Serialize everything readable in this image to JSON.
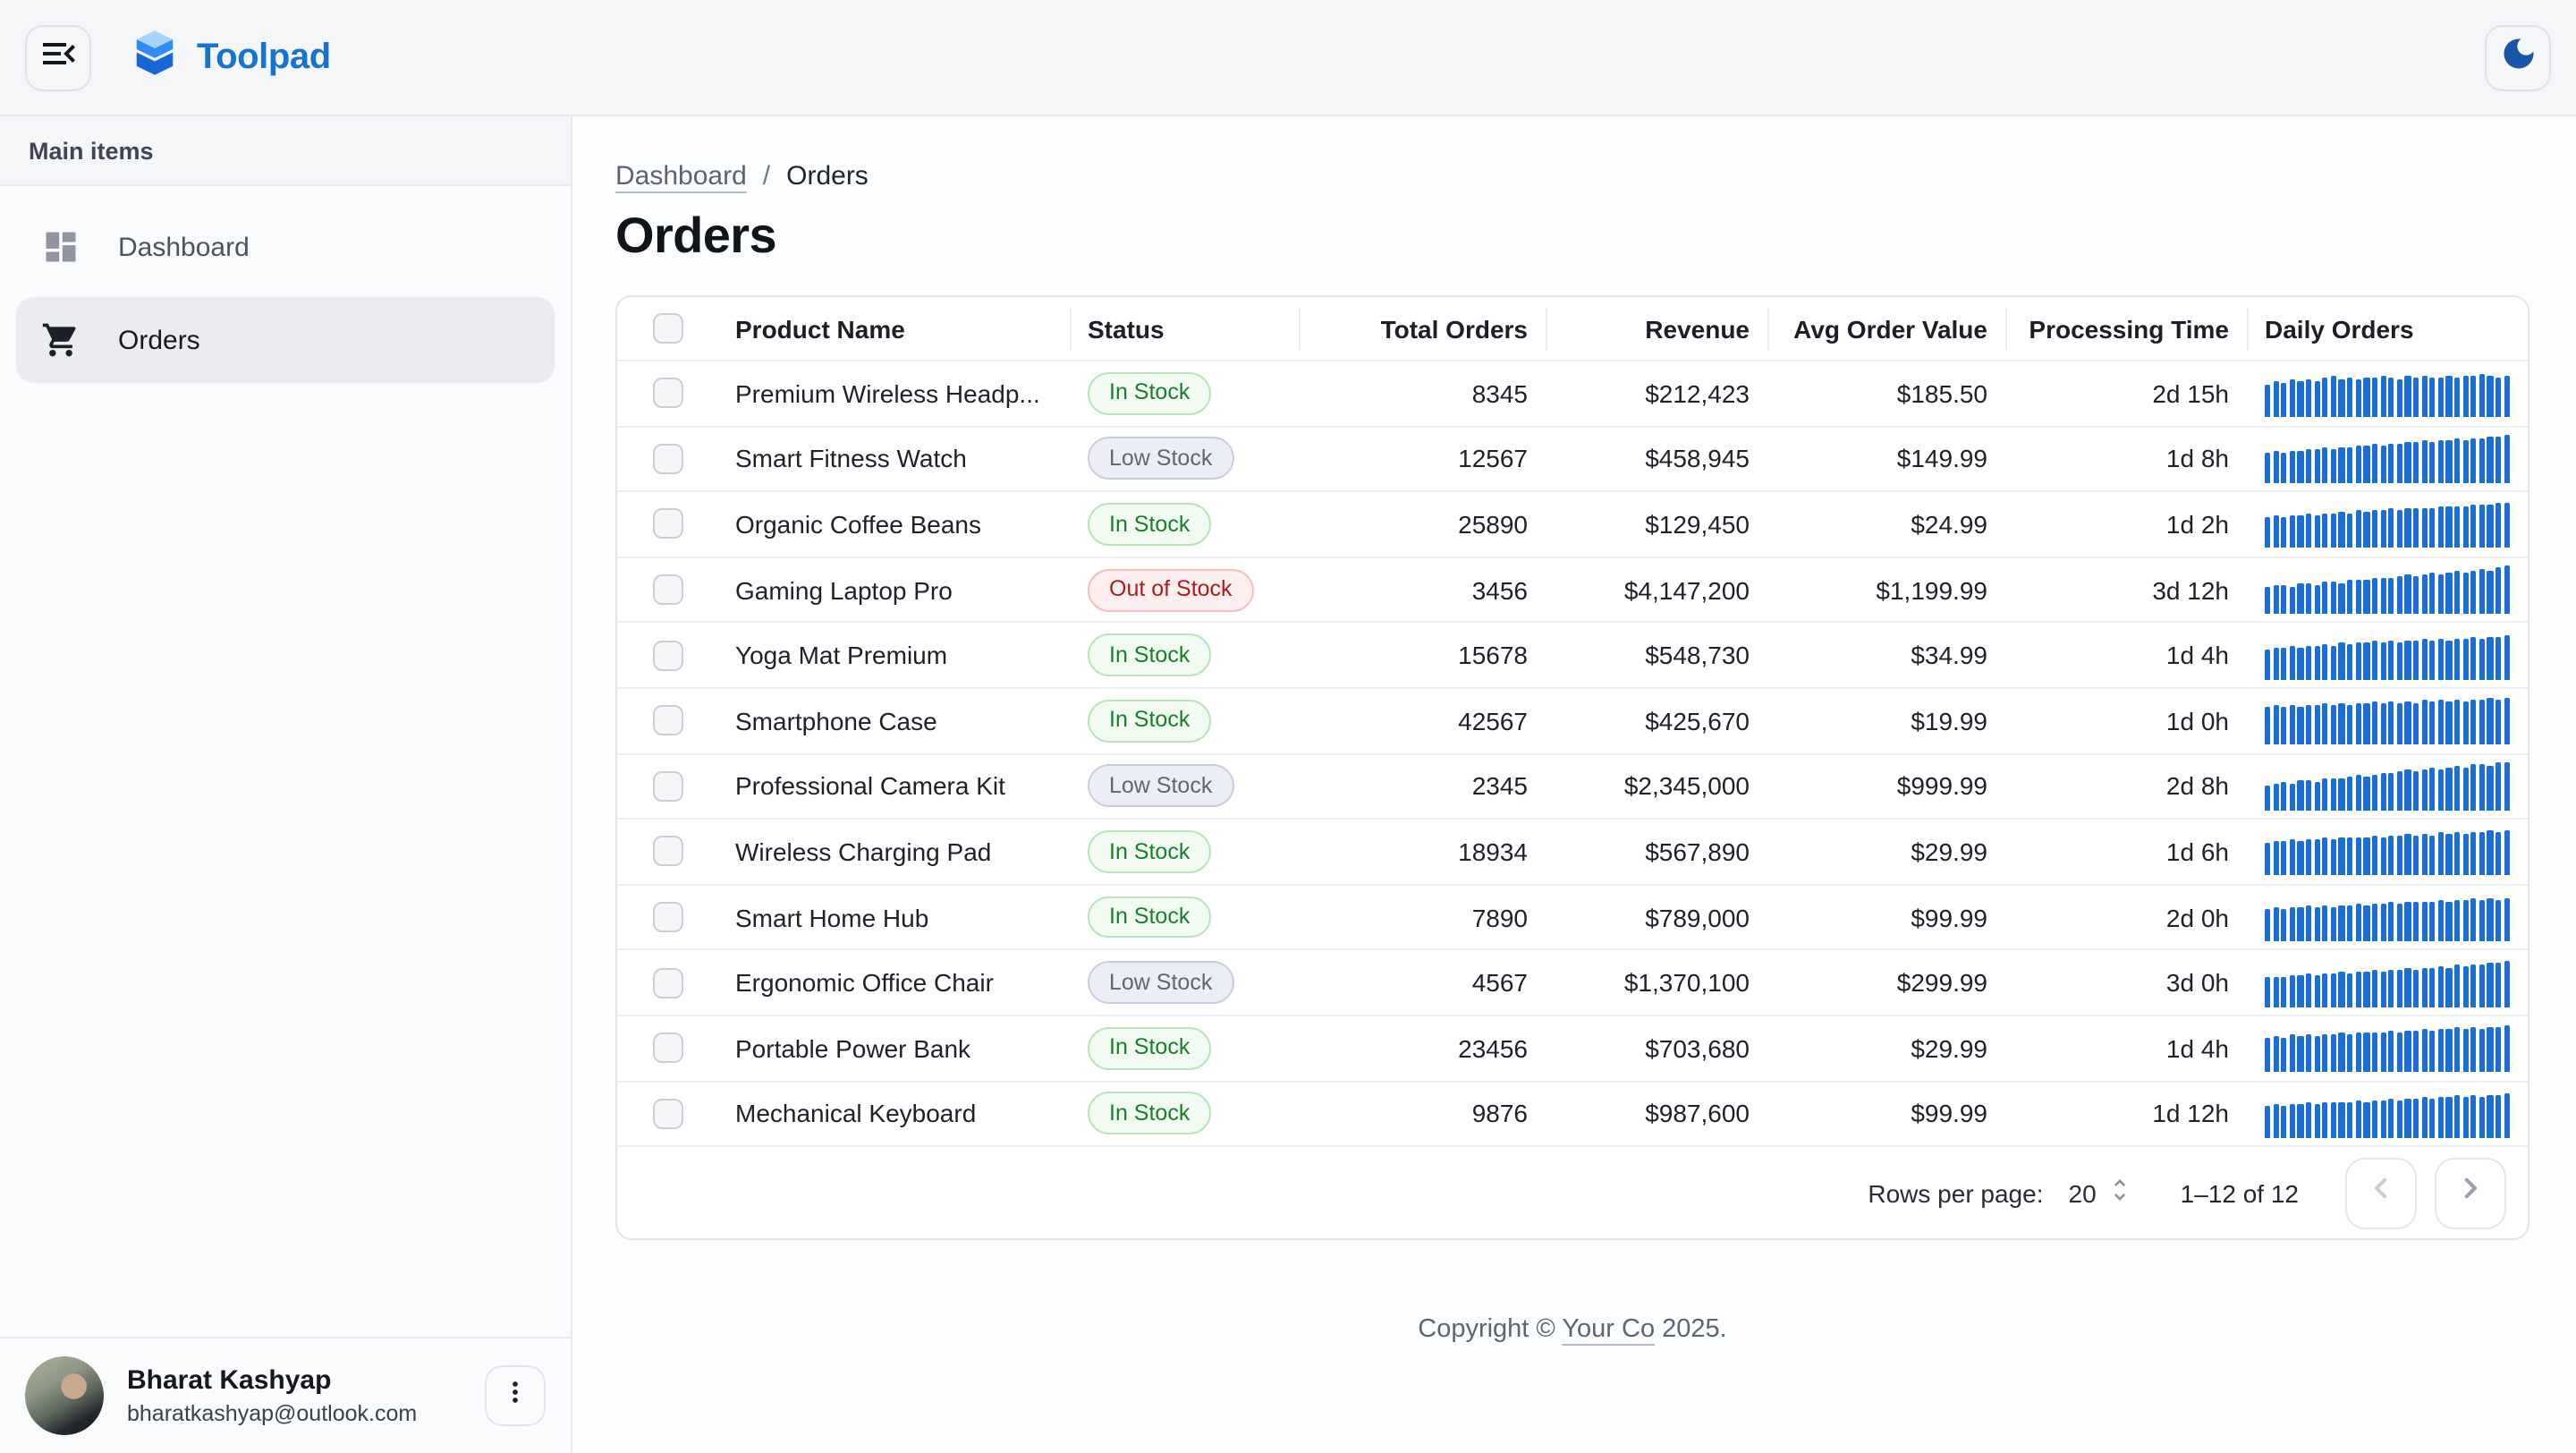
{
  "app": {
    "name": "Toolpad"
  },
  "theme": {
    "accent": "#1673d2",
    "spark_bar_color": "#1c6fd2",
    "status_colors": {
      "in": {
        "text": "#1b7e2c",
        "bg": "#f1fbf1",
        "border": "#bae3bb"
      },
      "low": {
        "text": "#5f6675",
        "bg": "#eceef6",
        "border": "#c9cedf"
      },
      "out": {
        "text": "#ab1d1d",
        "bg": "#fdefee",
        "border": "#f3c0bd"
      }
    }
  },
  "icons": {
    "menu": "menu-open-icon",
    "logo": "toolpad-logo",
    "theme": "moon-icon",
    "dashboard": "dashboard-grid-icon",
    "orders": "shopping-cart-icon",
    "rows_stepper": "unfold-more-icon",
    "prev": "chevron-left-icon",
    "next": "chevron-right-icon",
    "user_menu": "kebab-menu-icon"
  },
  "sidebar": {
    "section_label": "Main items",
    "items": [
      {
        "label": "Dashboard",
        "icon": "dashboard",
        "active": false
      },
      {
        "label": "Orders",
        "icon": "orders",
        "active": true
      }
    ]
  },
  "breadcrumb": {
    "items": [
      "Dashboard",
      "Orders"
    ],
    "separator": "/"
  },
  "page": {
    "title": "Orders"
  },
  "table": {
    "columns": [
      {
        "label": "Product Name",
        "align": "l"
      },
      {
        "label": "Status",
        "align": "l"
      },
      {
        "label": "Total Orders",
        "align": "r"
      },
      {
        "label": "Revenue",
        "align": "r"
      },
      {
        "label": "Avg Order Value",
        "align": "r"
      },
      {
        "label": "Processing Time",
        "align": "r"
      },
      {
        "label": "Daily Orders",
        "align": "l"
      }
    ],
    "rows": [
      {
        "name": "Premium Wireless Headp...",
        "status": "In Stock",
        "status_key": "in",
        "total": "8345",
        "revenue": "$212,423",
        "avg": "$185.50",
        "processing": "2d 15h",
        "daily": [
          68,
          75,
          72,
          78,
          74,
          80,
          77,
          82,
          85,
          80,
          83,
          79,
          84,
          81,
          86,
          83,
          80,
          85,
          82,
          87,
          84,
          81,
          86,
          83,
          88,
          85,
          90,
          87,
          84,
          86
        ]
      },
      {
        "name": "Smart Fitness Watch",
        "status": "Low Stock",
        "status_key": "low",
        "total": "12567",
        "revenue": "$458,945",
        "avg": "$149.99",
        "processing": "1d 8h",
        "daily": [
          62,
          65,
          63,
          68,
          66,
          70,
          69,
          73,
          71,
          75,
          74,
          78,
          76,
          80,
          79,
          82,
          81,
          85,
          84,
          87,
          86,
          89,
          88,
          91,
          90,
          93,
          92,
          95,
          97,
          99
        ]
      },
      {
        "name": "Organic Coffee Beans",
        "status": "In Stock",
        "status_key": "in",
        "total": "25890",
        "revenue": "$129,450",
        "avg": "$24.99",
        "processing": "1d 2h",
        "daily": [
          64,
          67,
          65,
          70,
          68,
          72,
          70,
          74,
          72,
          76,
          74,
          78,
          76,
          80,
          78,
          82,
          80,
          83,
          82,
          85,
          84,
          87,
          86,
          88,
          87,
          90,
          89,
          92,
          94,
          96
        ]
      },
      {
        "name": "Gaming Laptop Pro",
        "status": "Out of Stock",
        "status_key": "out",
        "total": "3456",
        "revenue": "$4,147,200",
        "avg": "$1,199.99",
        "processing": "3d 12h",
        "daily": [
          55,
          58,
          60,
          57,
          62,
          64,
          61,
          66,
          68,
          65,
          70,
          72,
          69,
          74,
          76,
          73,
          78,
          80,
          77,
          82,
          84,
          81,
          86,
          88,
          85,
          90,
          92,
          89,
          95,
          99
        ]
      },
      {
        "name": "Yoga Mat Premium",
        "status": "In Stock",
        "status_key": "in",
        "total": "15678",
        "revenue": "$548,730",
        "avg": "$34.99",
        "processing": "1d 4h",
        "daily": [
          63,
          66,
          64,
          69,
          67,
          71,
          69,
          73,
          71,
          75,
          73,
          77,
          75,
          79,
          77,
          80,
          78,
          82,
          80,
          83,
          81,
          84,
          82,
          85,
          83,
          86,
          85,
          88,
          87,
          90
        ]
      },
      {
        "name": "Smartphone Case",
        "status": "In Stock",
        "status_key": "in",
        "total": "42567",
        "revenue": "$425,670",
        "avg": "$19.99",
        "processing": "1d 0h",
        "daily": [
          78,
          81,
          79,
          83,
          80,
          84,
          82,
          86,
          83,
          87,
          84,
          88,
          85,
          89,
          86,
          90,
          87,
          91,
          88,
          92,
          89,
          93,
          90,
          94,
          91,
          95,
          92,
          96,
          94,
          97
        ]
      },
      {
        "name": "Professional Camera Kit",
        "status": "Low Stock",
        "status_key": "low",
        "total": "2345",
        "revenue": "$2,345,000",
        "avg": "$999.99",
        "processing": "2d 8h",
        "daily": [
          52,
          55,
          58,
          56,
          61,
          63,
          60,
          65,
          68,
          66,
          71,
          73,
          70,
          75,
          78,
          76,
          80,
          83,
          81,
          85,
          88,
          86,
          90,
          92,
          89,
          94,
          96,
          93,
          98,
          100
        ]
      },
      {
        "name": "Wireless Charging Pad",
        "status": "In Stock",
        "status_key": "in",
        "total": "18934",
        "revenue": "$567,890",
        "avg": "$29.99",
        "processing": "1d 6h",
        "daily": [
          70,
          73,
          71,
          75,
          73,
          77,
          75,
          78,
          76,
          80,
          78,
          81,
          79,
          83,
          81,
          84,
          82,
          86,
          84,
          87,
          85,
          89,
          87,
          90,
          88,
          92,
          90,
          93,
          92,
          95
        ]
      },
      {
        "name": "Smart Home Hub",
        "status": "In Stock",
        "status_key": "in",
        "total": "7890",
        "revenue": "$789,000",
        "avg": "$99.99",
        "processing": "2d 0h",
        "daily": [
          66,
          69,
          67,
          71,
          69,
          73,
          71,
          74,
          72,
          76,
          74,
          77,
          75,
          79,
          77,
          80,
          78,
          82,
          80,
          83,
          81,
          85,
          83,
          86,
          84,
          88,
          86,
          89,
          87,
          90
        ]
      },
      {
        "name": "Ergonomic Office Chair",
        "status": "Low Stock",
        "status_key": "low",
        "total": "4567",
        "revenue": "$1,370,100",
        "avg": "$299.99",
        "processing": "3d 0h",
        "daily": [
          60,
          63,
          61,
          66,
          64,
          68,
          66,
          70,
          68,
          72,
          70,
          74,
          72,
          76,
          74,
          78,
          76,
          80,
          78,
          82,
          80,
          84,
          82,
          86,
          84,
          88,
          86,
          90,
          93,
          96
        ]
      },
      {
        "name": "Portable Power Bank",
        "status": "In Stock",
        "status_key": "in",
        "total": "23456",
        "revenue": "$703,680",
        "avg": "$29.99",
        "processing": "1d 4h",
        "daily": [
          72,
          75,
          73,
          77,
          75,
          78,
          76,
          80,
          78,
          81,
          79,
          83,
          81,
          84,
          82,
          86,
          84,
          87,
          85,
          89,
          87,
          90,
          88,
          92,
          90,
          93,
          91,
          94,
          93,
          96
        ]
      },
      {
        "name": "Mechanical Keyboard",
        "status": "In Stock",
        "status_key": "in",
        "total": "9876",
        "revenue": "$987,600",
        "avg": "$99.99",
        "processing": "1d 12h",
        "daily": [
          65,
          68,
          66,
          70,
          68,
          72,
          70,
          74,
          72,
          75,
          73,
          77,
          75,
          79,
          77,
          80,
          78,
          82,
          80,
          84,
          82,
          85,
          83,
          87,
          85,
          88,
          86,
          90,
          88,
          92
        ]
      }
    ]
  },
  "pagination": {
    "rows_per_page_label": "Rows per page:",
    "rows_per_page": "20",
    "range": "1–12 of 12"
  },
  "footer": {
    "prefix": "Copyright © ",
    "link": "Your Co",
    "suffix": " 2025."
  },
  "user": {
    "name": "Bharat Kashyap",
    "email": "bharatkashyap@outlook.com"
  }
}
